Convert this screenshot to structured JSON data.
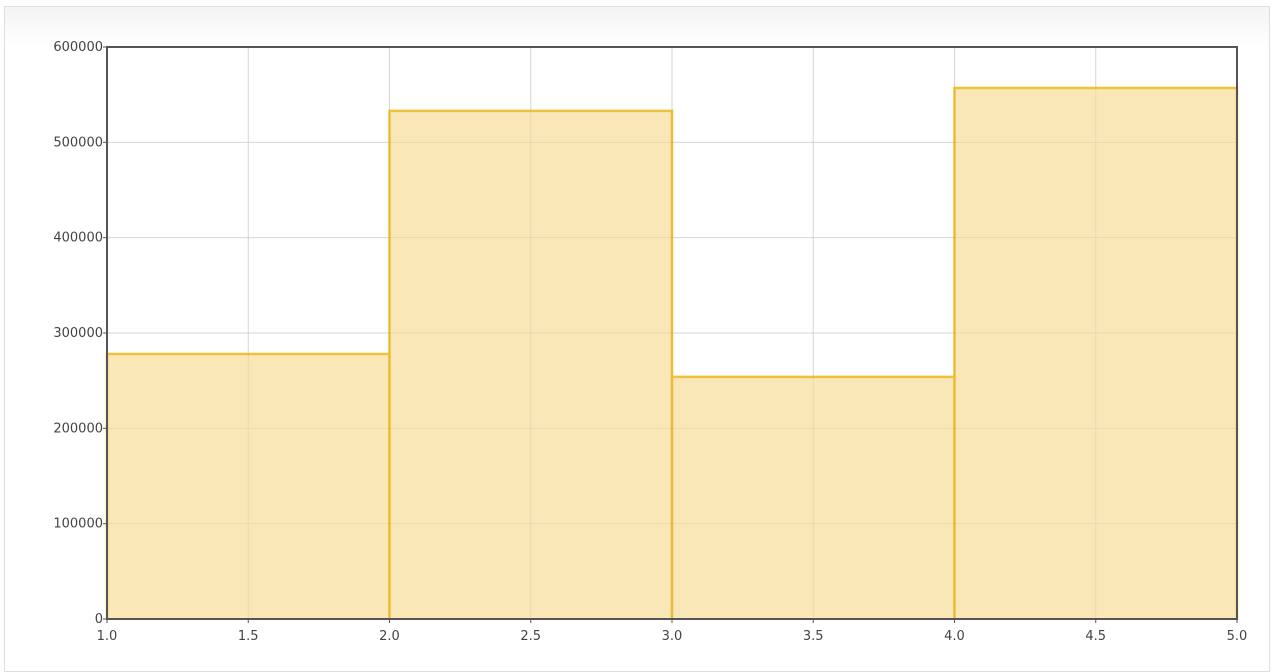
{
  "chart_data": {
    "type": "bar",
    "bins": [
      {
        "x0": 1.0,
        "x1": 2.0,
        "value": 278000
      },
      {
        "x0": 2.0,
        "x1": 3.0,
        "value": 533000
      },
      {
        "x0": 3.0,
        "x1": 4.0,
        "value": 254000
      },
      {
        "x0": 4.0,
        "x1": 5.0,
        "value": 557000
      }
    ],
    "xlim": [
      1.0,
      5.0
    ],
    "ylim": [
      0,
      600000
    ],
    "x_ticks": [
      {
        "value": 1.0,
        "label": "1.0"
      },
      {
        "value": 1.5,
        "label": "1.5"
      },
      {
        "value": 2.0,
        "label": "2.0"
      },
      {
        "value": 2.5,
        "label": "2.5"
      },
      {
        "value": 3.0,
        "label": "3.0"
      },
      {
        "value": 3.5,
        "label": "3.5"
      },
      {
        "value": 4.0,
        "label": "4.0"
      },
      {
        "value": 4.5,
        "label": "4.5"
      },
      {
        "value": 5.0,
        "label": "5.0"
      }
    ],
    "y_ticks": [
      {
        "value": 0,
        "label": "0"
      },
      {
        "value": 100000,
        "label": "100000"
      },
      {
        "value": 200000,
        "label": "200000"
      },
      {
        "value": 300000,
        "label": "300000"
      },
      {
        "value": 400000,
        "label": "400000"
      },
      {
        "value": 500000,
        "label": "500000"
      },
      {
        "value": 600000,
        "label": "600000"
      }
    ],
    "grid": true,
    "bar_fill": "#f8e4b0",
    "bar_stroke": "#f0c23a",
    "axis_color": "#555555",
    "grid_color": "#e2e2e2"
  }
}
